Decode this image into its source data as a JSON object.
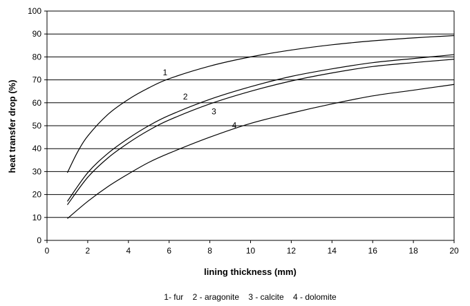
{
  "chart_data": {
    "type": "line",
    "title": "",
    "xlabel": "lining thickness (mm)",
    "ylabel": "heat transfer drop (%)",
    "xlim": [
      0,
      20
    ],
    "ylim": [
      0,
      100
    ],
    "xticks": [
      0,
      2,
      4,
      6,
      8,
      10,
      12,
      14,
      16,
      18,
      20
    ],
    "yticks": [
      0,
      10,
      20,
      30,
      40,
      50,
      60,
      70,
      80,
      90,
      100
    ],
    "grid": "horizontal",
    "legend_text": "1- fur    2 - aragonite    3 - calcite    4 - dolomite",
    "line_color": "#000000",
    "series": [
      {
        "name": "1- fur",
        "label": "1",
        "label_at": [
          5.8,
          72
        ],
        "x": [
          1,
          1.5,
          2,
          3,
          4,
          5,
          6,
          8,
          10,
          12,
          14,
          16,
          18,
          20
        ],
        "y": [
          29.5,
          38.5,
          45.5,
          55,
          61.5,
          66.5,
          70.5,
          76,
          80,
          83,
          85.3,
          87,
          88.3,
          89.3
        ]
      },
      {
        "name": "2 - aragonite",
        "label": "2",
        "label_at": [
          6.8,
          61.5
        ],
        "x": [
          1,
          2,
          3,
          4,
          5,
          6,
          8,
          10,
          12,
          14,
          16,
          18,
          20
        ],
        "y": [
          17,
          29.5,
          38,
          44.5,
          50,
          54.5,
          61.5,
          67,
          71.5,
          74.8,
          77.5,
          79.3,
          81
        ]
      },
      {
        "name": "3 - calcite",
        "label": "3",
        "label_at": [
          8.2,
          55
        ],
        "x": [
          1,
          2,
          3,
          4,
          5,
          6,
          8,
          10,
          12,
          14,
          16,
          18,
          20
        ],
        "y": [
          15.5,
          27.5,
          36,
          42.5,
          48,
          52.5,
          59.5,
          65,
          69.5,
          73,
          75.8,
          77.5,
          79
        ]
      },
      {
        "name": "4 - dolomite",
        "label": "4",
        "label_at": [
          9.2,
          49
        ],
        "x": [
          1,
          2,
          3,
          4,
          5,
          6,
          8,
          10,
          12,
          14,
          16,
          18,
          20
        ],
        "y": [
          9.5,
          17,
          23.5,
          29,
          34,
          38,
          45,
          51,
          55.5,
          59.5,
          63,
          65.5,
          68
        ]
      }
    ]
  }
}
